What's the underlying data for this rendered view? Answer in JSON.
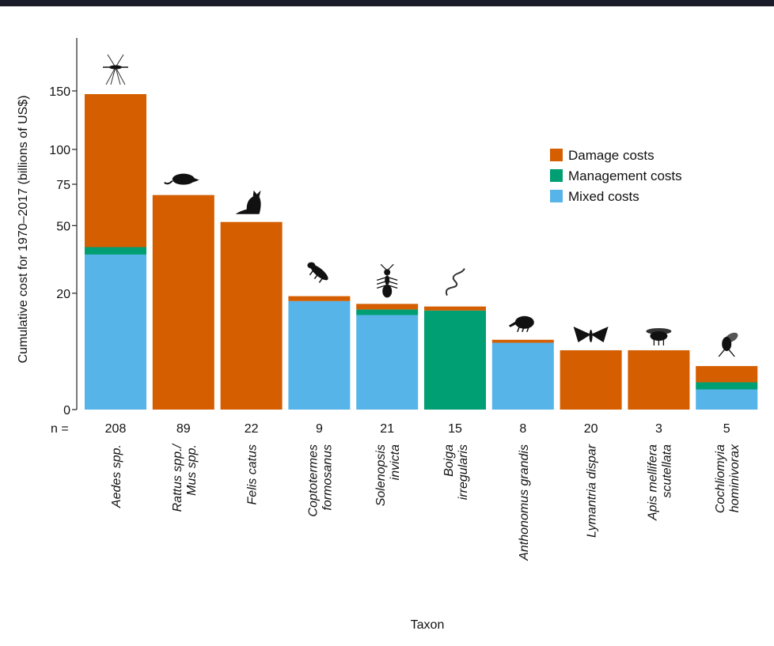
{
  "chart_data": {
    "type": "bar",
    "stacked": true,
    "xlabel": "Taxon",
    "ylabel": "Cumulative cost for 1970–2017 (billions of US$)",
    "n_prefix": "n =",
    "yticks": [
      0,
      20,
      50,
      75,
      100,
      150
    ],
    "ylim": [
      0,
      150
    ],
    "scale": "square-root",
    "categories": [
      [
        "Aedes spp."
      ],
      [
        "Rattus spp./",
        "Mus spp."
      ],
      [
        "Felis catus"
      ],
      [
        "Coptotermes",
        "formosanus"
      ],
      [
        "Solenopsis",
        "invicta"
      ],
      [
        "Boiga",
        "irregularis"
      ],
      [
        "Anthonomus grandis"
      ],
      [
        "Lymantria dispar"
      ],
      [
        "Apis mellifera",
        "scutellata"
      ],
      [
        "Cochliomyia",
        "hominivorax"
      ]
    ],
    "n": [
      "208",
      "89",
      "22",
      "9",
      "21",
      "15",
      "8",
      "20",
      "3",
      "5"
    ],
    "icons": [
      "mosquito-icon",
      "rat-icon",
      "cat-icon",
      "termite-icon",
      "ant-icon",
      "snake-icon",
      "weevil-icon",
      "moth-icon",
      "bee-icon",
      "fly-icon"
    ],
    "series": [
      {
        "name": "Mixed costs",
        "color": "#56b4e9",
        "values": [
          35.5,
          0,
          0,
          17.4,
          13.2,
          0,
          6.6,
          0,
          0,
          0.6
        ]
      },
      {
        "name": "Management costs",
        "color": "#009e73",
        "values": [
          3.5,
          0,
          0,
          0,
          1.6,
          14.5,
          0,
          0,
          0,
          0.5
        ]
      },
      {
        "name": "Damage costs",
        "color": "#d55e00",
        "values": [
          108,
          68,
          52,
          1.6,
          1.7,
          1.2,
          0.6,
          5.2,
          5.2,
          1.7
        ]
      }
    ],
    "legend_order": [
      "Damage costs",
      "Management costs",
      "Mixed costs"
    ],
    "legend_position": "top-right"
  }
}
